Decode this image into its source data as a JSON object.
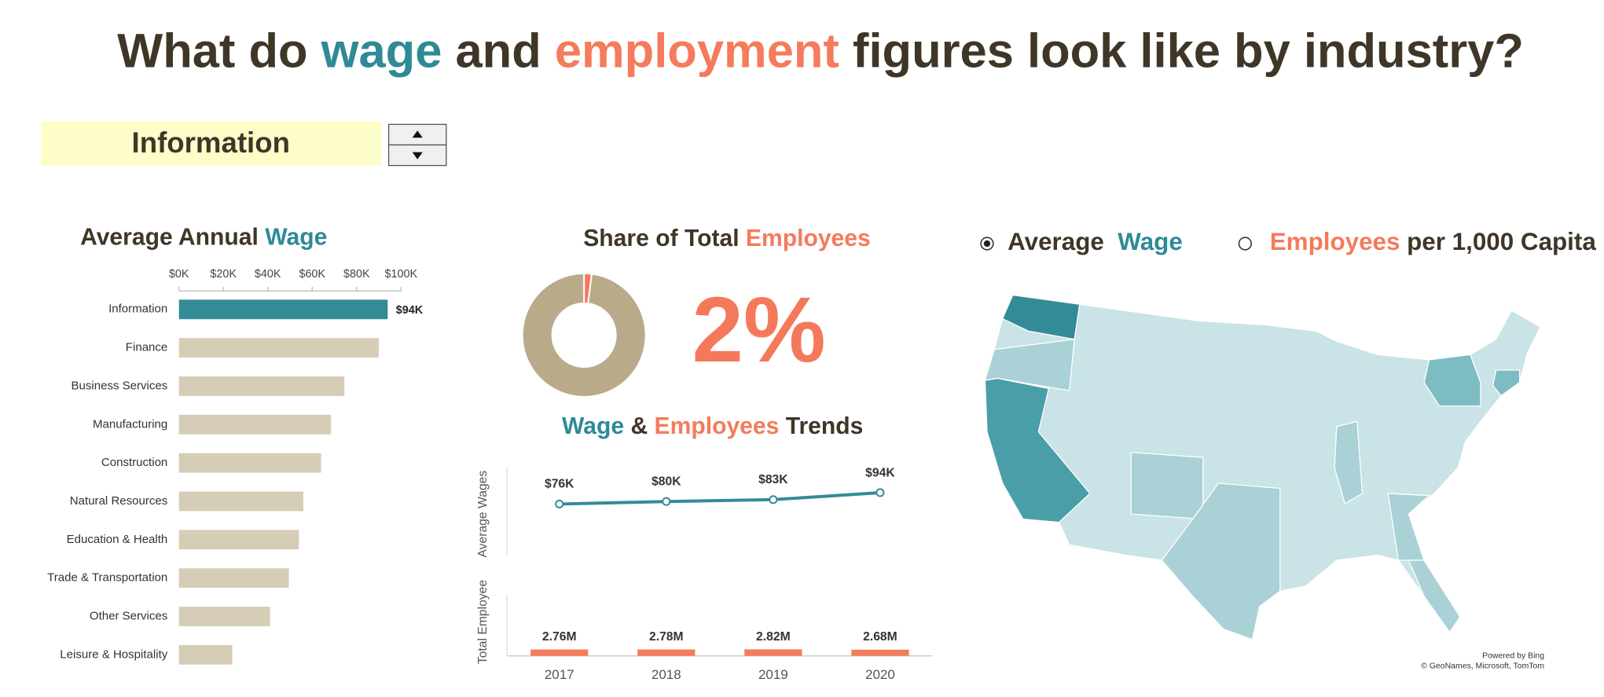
{
  "header": {
    "title": [
      {
        "text": "What do ",
        "color": "#3f3628"
      },
      {
        "text": "wage",
        "color": "#2e8a96"
      },
      {
        "text": " and ",
        "color": "#3f3628"
      },
      {
        "text": "employment",
        "color": "#f47b5b"
      },
      {
        "text": " figures look like by industry?",
        "color": "#3f3628"
      }
    ]
  },
  "selector": {
    "value": "Information"
  },
  "chart_data": [
    {
      "type": "hbar",
      "title": [
        {
          "text": "Average Annual ",
          "color": "#3f3628"
        },
        {
          "text": "Wage",
          "color": "#2e8a96"
        }
      ],
      "categories": [
        "Information",
        "Finance",
        "Business Services",
        "Manufacturing",
        "Construction",
        "Natural Resources",
        "Education & Health",
        "Trade & Transportation",
        "Other Services",
        "Leisure & Hospitality"
      ],
      "values": [
        94000,
        90000,
        74500,
        68500,
        64000,
        56000,
        54000,
        49500,
        41000,
        24000
      ],
      "value_labels": [
        "$94K",
        null,
        null,
        null,
        null,
        null,
        null,
        null,
        null,
        null
      ],
      "colors": [
        "#338b97",
        "#d6cdb6",
        "#d6cdb6",
        "#d6cdb6",
        "#d6cdb6",
        "#d6cdb6",
        "#d6cdb6",
        "#d6cdb6",
        "#d6cdb6",
        "#d6cdb6"
      ],
      "xlim": [
        0,
        100000
      ],
      "xticks": [
        {
          "value": 0,
          "label": "$0K"
        },
        {
          "value": 20000,
          "label": "$20K"
        },
        {
          "value": 40000,
          "label": "$40K"
        },
        {
          "value": 60000,
          "label": "$60K"
        },
        {
          "value": 80000,
          "label": "$80K"
        },
        {
          "value": 100000,
          "label": "$100K"
        }
      ]
    },
    {
      "type": "pie",
      "title": [
        {
          "text": "Share of Total ",
          "color": "#3f3628"
        },
        {
          "text": "Employees",
          "color": "#f47b5b"
        }
      ],
      "values": [
        2,
        98
      ],
      "value_labels": [
        "2%",
        null
      ],
      "colors": [
        "#f4795b",
        "#b9ab8a"
      ],
      "donut": true
    },
    {
      "type": "combo",
      "title": [
        {
          "text": "Wage",
          "color": "#2e8a96"
        },
        {
          "text": " & ",
          "color": "#3f3628"
        },
        {
          "text": "Employees",
          "color": "#f47b5b"
        },
        {
          "text": " Trends",
          "color": "#3f3628"
        }
      ],
      "categories": [
        "2017",
        "2018",
        "2019",
        "2020"
      ],
      "series": [
        {
          "name": "Average Wages",
          "type": "line",
          "color": "#338b97",
          "values": [
            76000,
            80000,
            83000,
            94000
          ],
          "value_labels": [
            "$76K",
            "$80K",
            "$83K",
            "$94K"
          ],
          "ylim": [
            0,
            140000
          ]
        },
        {
          "name": "Total Employee",
          "type": "bar",
          "color": "#f47b5b",
          "values": [
            2760000,
            2780000,
            2820000,
            2680000
          ],
          "value_labels": [
            "2.76M",
            "2.78M",
            "2.82M",
            "2.68M"
          ],
          "ylim": [
            0,
            28000000
          ]
        }
      ]
    }
  ],
  "map": {
    "options": [
      {
        "parts": [
          {
            "text": "Average  ",
            "color": "#3f3628"
          },
          {
            "text": "Wage",
            "color": "#2e8a96"
          }
        ],
        "selected": true
      },
      {
        "parts": [
          {
            "text": "Employees",
            "color": "#f47b5b"
          },
          {
            "text": " per 1,000 Capita",
            "color": "#3f3628"
          }
        ],
        "selected": false
      }
    ],
    "credits": [
      "Powered by Bing",
      "© GeoNames, Microsoft, TomTom"
    ]
  }
}
